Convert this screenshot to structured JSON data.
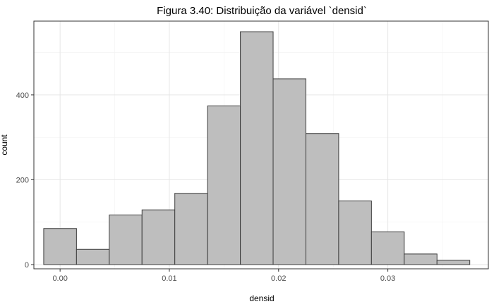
{
  "chart_data": {
    "type": "bar",
    "title": "Figura 3.40: Distribuição da variável `densid`",
    "xlabel": "densid",
    "ylabel": "count",
    "xlim": [
      -0.0024,
      0.0392
    ],
    "ylim": [
      -10,
      574
    ],
    "x_ticks": [
      0.0,
      0.01,
      0.02,
      0.03
    ],
    "x_tick_labels": [
      "0.00",
      "0.01",
      "0.02",
      "0.03"
    ],
    "y_ticks": [
      0,
      200,
      400
    ],
    "y_tick_labels": [
      "0",
      "200",
      "400"
    ],
    "grid": true,
    "bar_fill": "#bebebe",
    "bar_outline": "#3d3d3d",
    "bins": [
      {
        "x0": -0.0015,
        "x1": 0.0015,
        "count": 85
      },
      {
        "x0": 0.0015,
        "x1": 0.0045,
        "count": 36
      },
      {
        "x0": 0.0045,
        "x1": 0.0075,
        "count": 117
      },
      {
        "x0": 0.0075,
        "x1": 0.0105,
        "count": 129
      },
      {
        "x0": 0.0105,
        "x1": 0.0135,
        "count": 168
      },
      {
        "x0": 0.0135,
        "x1": 0.0165,
        "count": 374
      },
      {
        "x0": 0.0165,
        "x1": 0.0195,
        "count": 549
      },
      {
        "x0": 0.0195,
        "x1": 0.0225,
        "count": 438
      },
      {
        "x0": 0.0225,
        "x1": 0.0255,
        "count": 309
      },
      {
        "x0": 0.0255,
        "x1": 0.0285,
        "count": 150
      },
      {
        "x0": 0.0285,
        "x1": 0.0315,
        "count": 77
      },
      {
        "x0": 0.0315,
        "x1": 0.0345,
        "count": 25
      },
      {
        "x0": 0.0345,
        "x1": 0.0375,
        "count": 10
      }
    ]
  }
}
